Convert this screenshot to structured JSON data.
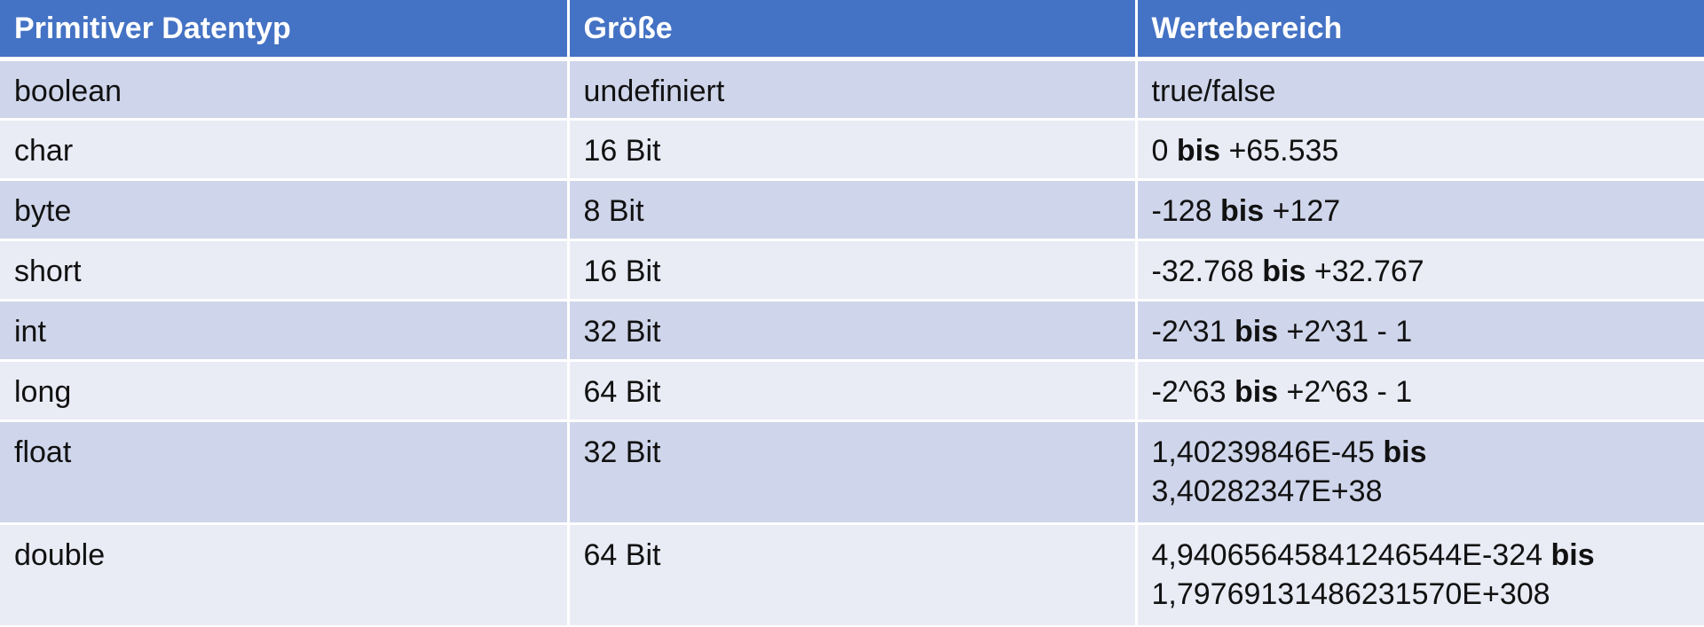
{
  "header": {
    "col1": "Primitiver Datentyp",
    "col2": "Größe",
    "col3": "Wertebereich"
  },
  "rows": [
    {
      "type": "boolean",
      "size": "undefiniert",
      "range_from": "true/false",
      "range_sep": "",
      "range_to": ""
    },
    {
      "type": "char",
      "size": "16 Bit",
      "range_from": "0",
      "range_sep": "bis",
      "range_to": "+65.535"
    },
    {
      "type": "byte",
      "size": "8 Bit",
      "range_from": "-128",
      "range_sep": "bis",
      "range_to": "+127"
    },
    {
      "type": "short",
      "size": "16 Bit",
      "range_from": "-32.768",
      "range_sep": "bis",
      "range_to": "+32.767"
    },
    {
      "type": "int",
      "size": "32 Bit",
      "range_from": "-2^31",
      "range_sep": "bis",
      "range_to": "+2^31 - 1"
    },
    {
      "type": "long",
      "size": "64 Bit",
      "range_from": "-2^63",
      "range_sep": "bis",
      "range_to": "+2^63 - 1"
    },
    {
      "type": "float",
      "size": "32 Bit",
      "range_from": "1,40239846E-45",
      "range_sep": "bis",
      "range_to": "3,40282347E+38"
    },
    {
      "type": "double",
      "size": "64 Bit",
      "range_from": "4,94065645841246544E-324",
      "range_sep": "bis",
      "range_to": "1,79769131486231570E+308"
    }
  ]
}
